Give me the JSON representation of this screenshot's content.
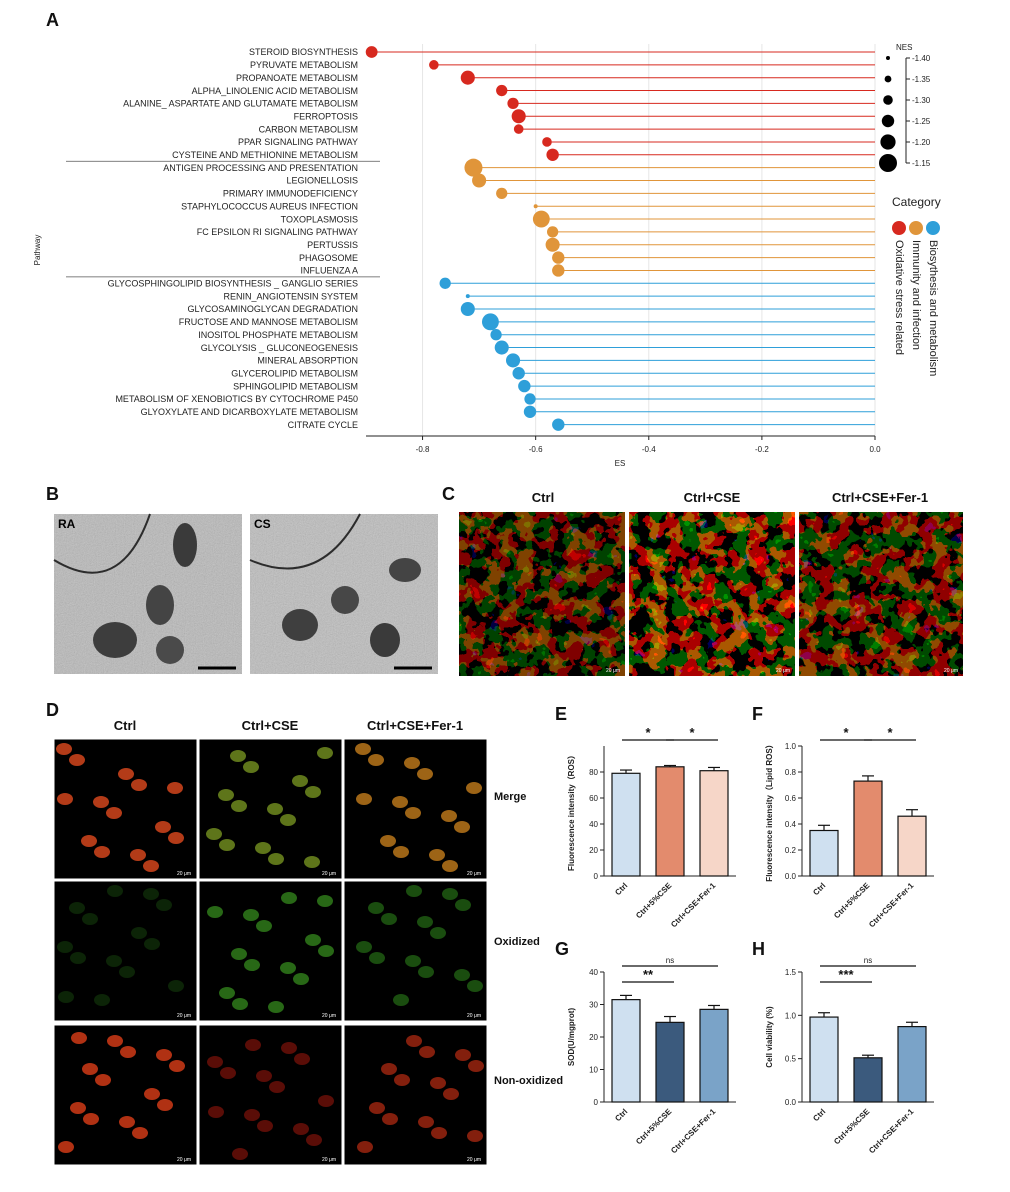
{
  "panel_labels": {
    "a": "A",
    "b": "B",
    "c": "C",
    "d": "D",
    "e": "E",
    "f": "F",
    "g": "G",
    "h": "H"
  },
  "panel_a": {
    "chart_data": {
      "type": "scatter",
      "xlabel": "ES",
      "ylabel": "Pathway",
      "xlim": [
        -0.9,
        0.0
      ],
      "xticks": [
        "-0.8",
        "-0.6",
        "-0.4",
        "-0.2",
        "0.0"
      ],
      "size_legend_title": "NES",
      "size_legend": [
        "-1.40",
        "-1.35",
        "-1.30",
        "-1.25",
        "-1.20",
        "-1.15"
      ],
      "category_legend_title": "Category",
      "categories": [
        {
          "name": "Biosythesis and metabolism",
          "color": "#2e9fd9"
        },
        {
          "name": "Immunity and infection",
          "color": "#e0953a"
        },
        {
          "name": "Oxidative stress related",
          "color": "#d7291f"
        }
      ],
      "pathways": [
        {
          "name": "STEROID BIOSYNTHESIS",
          "es": -0.89,
          "nes": -1.26,
          "cat": "oxidative"
        },
        {
          "name": "PYRUVATE METABOLISM",
          "es": -0.78,
          "nes": -1.3,
          "cat": "oxidative"
        },
        {
          "name": "PROPANOATE METABOLISM",
          "es": -0.72,
          "nes": -1.22,
          "cat": "oxidative"
        },
        {
          "name": "ALPHA_LINOLENIC ACID METABOLISM",
          "es": -0.66,
          "nes": -1.27,
          "cat": "oxidative"
        },
        {
          "name": "ALANINE_ ASPARTATE AND GLUTAMATE METABOLISM",
          "es": -0.64,
          "nes": -1.27,
          "cat": "oxidative"
        },
        {
          "name": "FERROPTOSIS",
          "es": -0.63,
          "nes": -1.22,
          "cat": "oxidative",
          "highlight": true
        },
        {
          "name": "CARBON METABOLISM",
          "es": -0.63,
          "nes": -1.3,
          "cat": "oxidative"
        },
        {
          "name": "PPAR SIGNALING PATHWAY",
          "es": -0.58,
          "nes": -1.3,
          "cat": "oxidative"
        },
        {
          "name": "CYSTEINE AND METHIONINE  METABOLISM",
          "es": -0.57,
          "nes": -1.25,
          "cat": "oxidative"
        },
        {
          "name": "ANTIGEN PROCESSING AND PRESENTATION",
          "es": -0.71,
          "nes": -1.15,
          "cat": "immunity"
        },
        {
          "name": "LEGIONELLOSIS",
          "es": -0.7,
          "nes": -1.22,
          "cat": "immunity"
        },
        {
          "name": "PRIMARY IMMUNODEFICIENCY",
          "es": -0.66,
          "nes": -1.27,
          "cat": "immunity"
        },
        {
          "name": "STAPHYLOCOCCUS AUREUS INFECTION",
          "es": -0.6,
          "nes": -1.4,
          "cat": "immunity"
        },
        {
          "name": "TOXOPLASMOSIS",
          "es": -0.59,
          "nes": -1.17,
          "cat": "immunity"
        },
        {
          "name": "FC EPSILON RI SIGNALING PATHWAY",
          "es": -0.57,
          "nes": -1.27,
          "cat": "immunity"
        },
        {
          "name": "PERTUSSIS",
          "es": -0.57,
          "nes": -1.22,
          "cat": "immunity"
        },
        {
          "name": "PHAGOSOME",
          "es": -0.56,
          "nes": -1.25,
          "cat": "immunity"
        },
        {
          "name": "INFLUENZA A",
          "es": -0.56,
          "nes": -1.25,
          "cat": "immunity"
        },
        {
          "name": "GLYCOSPHINGOLIPID BIOSYNTHESIS _ GANGLIO SERIES",
          "es": -0.76,
          "nes": -1.27,
          "cat": "biosynthesis"
        },
        {
          "name": "RENIN_ANGIOTENSIN SYSTEM",
          "es": -0.72,
          "nes": -1.4,
          "cat": "biosynthesis"
        },
        {
          "name": "GLYCOSAMINOGLYCAN DEGRADATION",
          "es": -0.72,
          "nes": -1.22,
          "cat": "biosynthesis"
        },
        {
          "name": "FRUCTOSE AND MANNOSE METABOLISM",
          "es": -0.68,
          "nes": -1.17,
          "cat": "biosynthesis"
        },
        {
          "name": "INOSITOL PHOSPHATE METABOLISM",
          "es": -0.67,
          "nes": -1.27,
          "cat": "biosynthesis"
        },
        {
          "name": "GLYCOLYSIS _ GLUCONEOGENESIS",
          "es": -0.66,
          "nes": -1.22,
          "cat": "biosynthesis"
        },
        {
          "name": "MINERAL ABSORPTION",
          "es": -0.64,
          "nes": -1.22,
          "cat": "biosynthesis"
        },
        {
          "name": "GLYCEROLIPID METABOLISM",
          "es": -0.63,
          "nes": -1.25,
          "cat": "biosynthesis"
        },
        {
          "name": "SPHINGOLIPID METABOLISM",
          "es": -0.62,
          "nes": -1.25,
          "cat": "biosynthesis"
        },
        {
          "name": "METABOLISM OF XENOBIOTICS BY CYTOCHROME P450",
          "es": -0.61,
          "nes": -1.27,
          "cat": "biosynthesis"
        },
        {
          "name": "GLYOXYLATE AND DICARBOXYLATE METABOLISM",
          "es": -0.61,
          "nes": -1.25,
          "cat": "biosynthesis"
        },
        {
          "name": "CITRATE CYCLE",
          "es": -0.56,
          "nes": -1.25,
          "cat": "biosynthesis"
        }
      ]
    }
  },
  "panel_b": {
    "labels": [
      "RA",
      "CS"
    ]
  },
  "panel_c": {
    "headers": [
      "Ctrl",
      "Ctrl+CSE",
      "Ctrl+CSE+Fer-1"
    ],
    "scale": "20 μm"
  },
  "panel_d": {
    "headers": [
      "Ctrl",
      "Ctrl+CSE",
      "Ctrl+CSE+Fer-1"
    ],
    "rows": [
      "Merge",
      "Oxidized",
      "Non-oxidized"
    ],
    "scale": "20 μm"
  },
  "chart_data": [
    {
      "id": "E",
      "type": "bar",
      "ylabel": "Fluorescence intensity（ROS）",
      "categories": [
        "Ctrl",
        "Ctrl+5%CSE",
        "Ctrl+CSE+Fer-1"
      ],
      "values": [
        79,
        84,
        81
      ],
      "errors": [
        2.5,
        1,
        2.5
      ],
      "ylim": [
        0,
        100
      ],
      "yticks": [
        "0",
        "20",
        "40",
        "60",
        "80"
      ],
      "colors": [
        "#cfe0f0",
        "#e38b6d",
        "#f6d6c8"
      ],
      "significance": [
        "*",
        "*"
      ]
    },
    {
      "id": "F",
      "type": "bar",
      "ylabel": "Fluorescence intensity（Lipid ROS）",
      "categories": [
        "Ctrl",
        "Ctrl+5%CSE",
        "Ctrl+CSE+Fer-1"
      ],
      "values": [
        0.35,
        0.73,
        0.46
      ],
      "errors": [
        0.04,
        0.04,
        0.05
      ],
      "ylim": [
        0,
        1.0
      ],
      "yticks": [
        "0.0",
        "0.2",
        "0.4",
        "0.6",
        "0.8",
        "1.0"
      ],
      "colors": [
        "#cfe0f0",
        "#e38b6d",
        "#f6d6c8"
      ],
      "significance": [
        "*",
        "*"
      ]
    },
    {
      "id": "G",
      "type": "bar",
      "ylabel": "SOD(U/mgprot)",
      "categories": [
        "Ctrl",
        "Ctrl+5%CSE",
        "Ctrl+CSE+Fer-1"
      ],
      "values": [
        31.5,
        24.5,
        28.5
      ],
      "errors": [
        1.3,
        1.8,
        1.2
      ],
      "ylim": [
        0,
        40
      ],
      "yticks": [
        "0",
        "10",
        "20",
        "30",
        "40"
      ],
      "colors": [
        "#cfe0f0",
        "#3b5a7d",
        "#7aa3c8"
      ],
      "significance": [
        "**",
        "ns"
      ]
    },
    {
      "id": "H",
      "type": "bar",
      "ylabel": "Cell viability (%)",
      "categories": [
        "Ctrl",
        "Ctrl+5%CSE",
        "Ctrl+CSE+Fer-1"
      ],
      "values": [
        0.98,
        0.51,
        0.87
      ],
      "errors": [
        0.05,
        0.03,
        0.05
      ],
      "ylim": [
        0,
        1.5
      ],
      "yticks": [
        "0.0",
        "0.5",
        "1.0",
        "1.5"
      ],
      "colors": [
        "#cfe0f0",
        "#3b5a7d",
        "#7aa3c8"
      ],
      "significance": [
        "***",
        "ns"
      ]
    }
  ]
}
